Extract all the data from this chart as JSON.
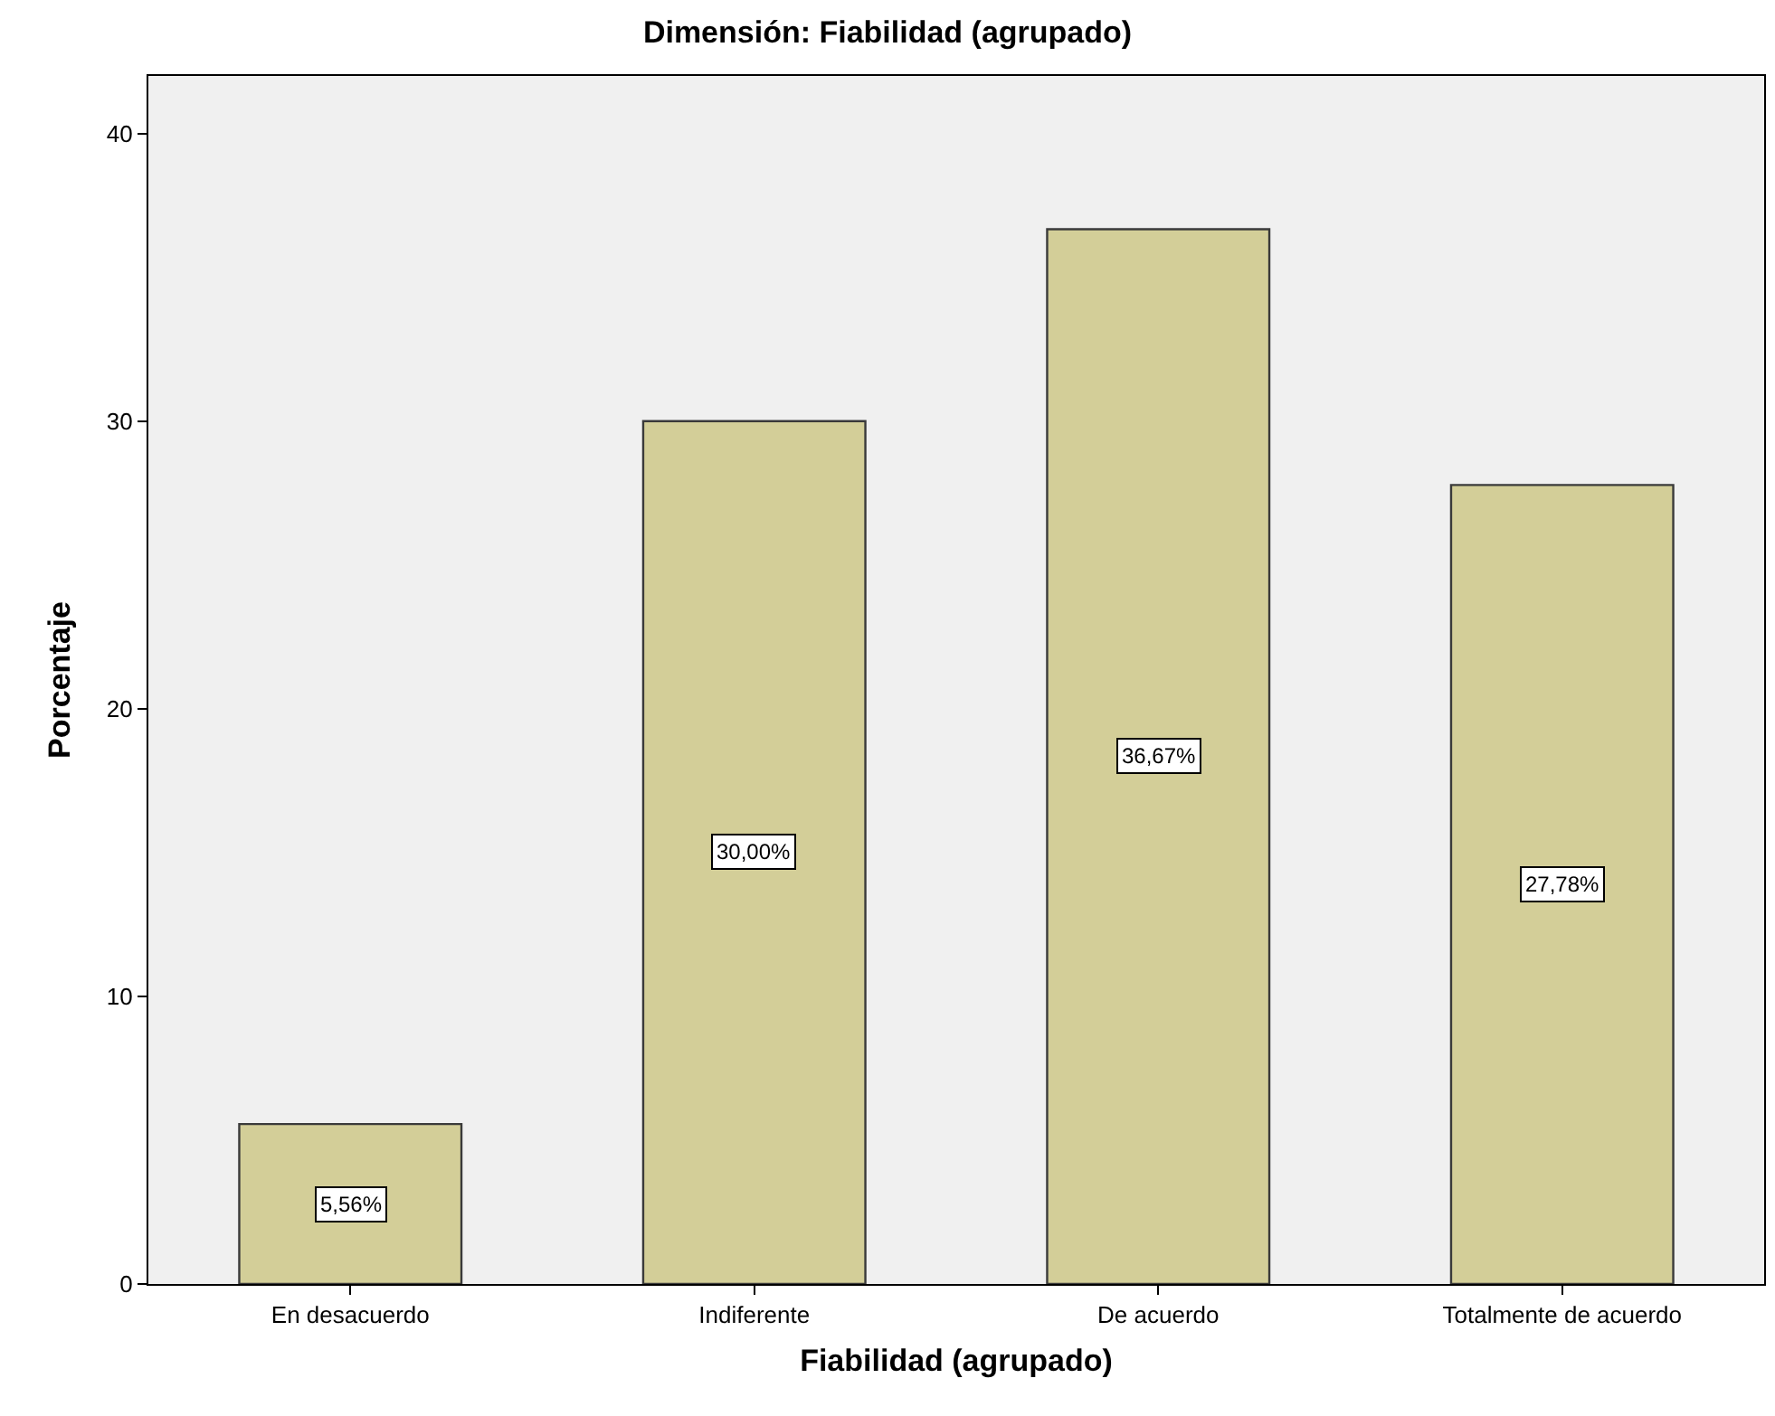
{
  "chart_data": {
    "type": "bar",
    "title": "Dimensión: Fiabilidad (agrupado)",
    "xlabel": "Fiabilidad (agrupado)",
    "ylabel": "Porcentaje",
    "categories": [
      "En desacuerdo",
      "Indiferente",
      "De acuerdo",
      "Totalmente de acuerdo"
    ],
    "values": [
      5.56,
      30.0,
      36.67,
      27.78
    ],
    "value_labels": [
      "5,56%",
      "30,00%",
      "36,67%",
      "27,78%"
    ],
    "color": "#d3ce98",
    "ylim": [
      0,
      42
    ],
    "yticks": [
      0,
      10,
      20,
      30,
      40
    ],
    "grid": false,
    "legend": false
  }
}
